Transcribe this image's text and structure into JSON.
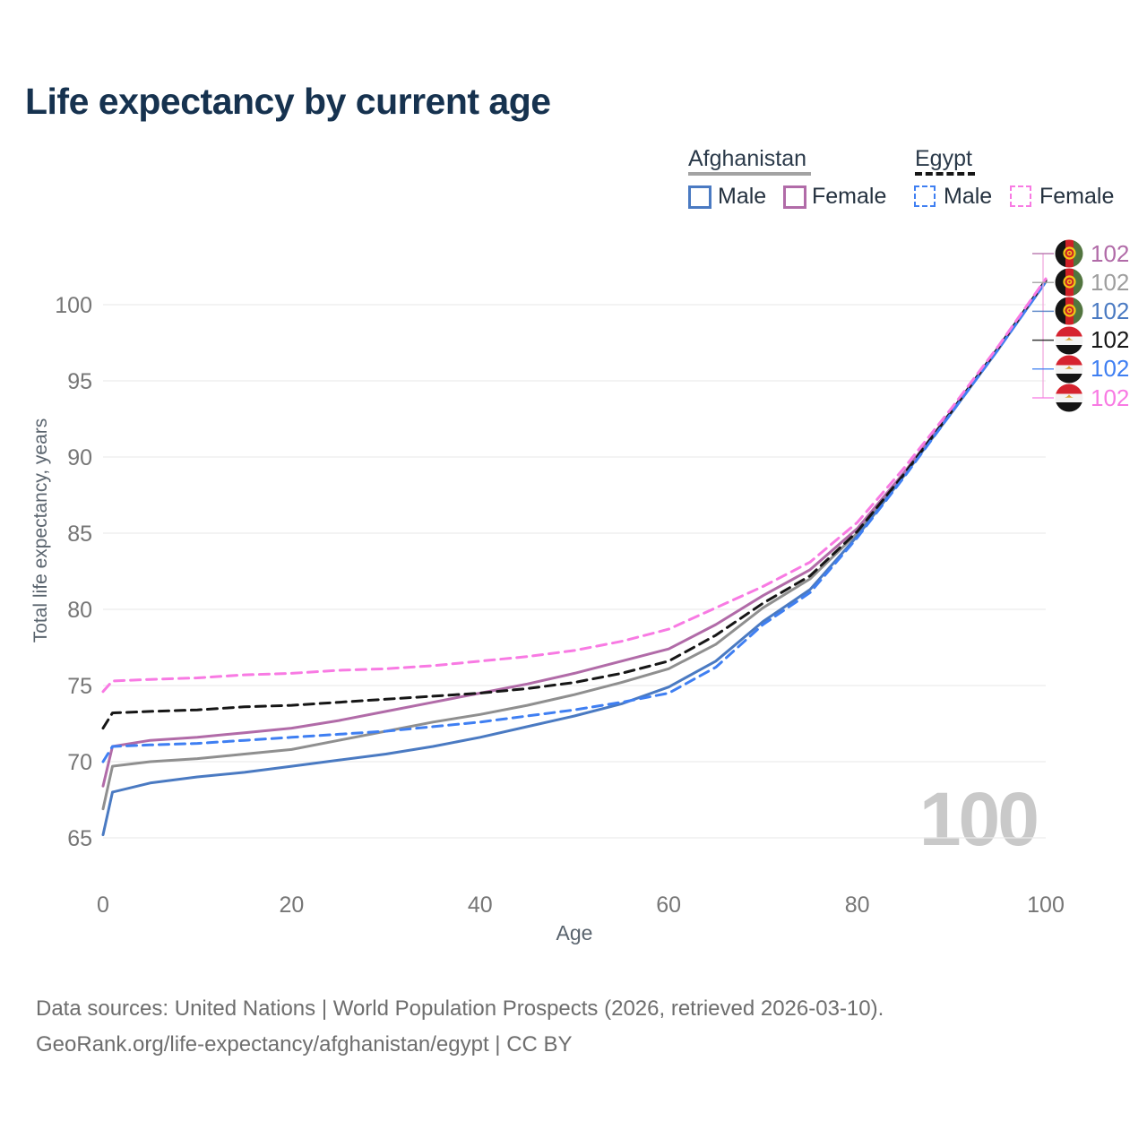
{
  "title": "Life expectancy by current age",
  "watermark": "100",
  "legend": {
    "groups": [
      {
        "country": "Afghanistan",
        "underline": "solid",
        "underline_color": "#a3a3a3",
        "items": [
          {
            "label": "Male",
            "color": "#4a7ac2",
            "dashed": false
          },
          {
            "label": "Female",
            "color": "#b16ba8",
            "dashed": false
          }
        ]
      },
      {
        "country": "Egypt",
        "underline": "dashed",
        "underline_color": "#161616",
        "items": [
          {
            "label": "Male",
            "color": "#3f7ff2",
            "dashed": true
          },
          {
            "label": "Female",
            "color": "#f87ae3",
            "dashed": true
          }
        ]
      }
    ]
  },
  "footer": {
    "line1": "Data sources: United Nations | World Population Prospects (2026, retrieved 2026-03-10).",
    "line2": "GeoRank.org/life-expectancy/afghanistan/egypt | CC BY"
  },
  "chart_data": {
    "type": "line",
    "title": "Life expectancy by current age",
    "xlabel": "Age",
    "ylabel": "Total life expectancy, years",
    "xlim": [
      0,
      100
    ],
    "ylim": [
      65,
      102
    ],
    "xticks": [
      0,
      20,
      40,
      60,
      80,
      100
    ],
    "yticks": [
      65,
      70,
      75,
      80,
      85,
      90,
      95,
      100
    ],
    "grid": "horizontal",
    "legend_position": "top-right",
    "ages": [
      0,
      1,
      5,
      10,
      15,
      20,
      25,
      30,
      35,
      40,
      45,
      50,
      55,
      60,
      65,
      70,
      75,
      80,
      85,
      90,
      95,
      100
    ],
    "series": [
      {
        "name": "Afghanistan Total",
        "country": "Afghanistan",
        "group": "total",
        "color": "#8f8f8f",
        "dashed": false,
        "values": [
          66.9,
          69.7,
          70.0,
          70.2,
          70.5,
          70.8,
          71.4,
          72.0,
          72.6,
          73.1,
          73.7,
          74.4,
          75.2,
          76.1,
          77.7,
          80.1,
          82.0,
          85.0,
          88.9,
          93.0,
          97.2,
          101.6
        ]
      },
      {
        "name": "Afghanistan Male",
        "country": "Afghanistan",
        "group": "male",
        "color": "#4a7ac2",
        "dashed": false,
        "values": [
          65.2,
          68.0,
          68.6,
          69.0,
          69.3,
          69.7,
          70.1,
          70.5,
          71.0,
          71.6,
          72.3,
          73.0,
          73.8,
          74.9,
          76.6,
          79.2,
          81.3,
          84.8,
          88.8,
          92.9,
          97.1,
          101.5
        ]
      },
      {
        "name": "Afghanistan Female",
        "country": "Afghanistan",
        "group": "female",
        "color": "#b16ba8",
        "dashed": false,
        "values": [
          68.4,
          71.0,
          71.4,
          71.6,
          71.9,
          72.2,
          72.7,
          73.3,
          73.9,
          74.5,
          75.1,
          75.8,
          76.6,
          77.4,
          79.0,
          80.9,
          82.6,
          85.3,
          89.0,
          93.0,
          97.2,
          101.6
        ]
      },
      {
        "name": "Egypt Total",
        "country": "Egypt",
        "group": "total",
        "color": "#161616",
        "dashed": true,
        "values": [
          72.2,
          73.2,
          73.3,
          73.4,
          73.6,
          73.7,
          73.9,
          74.1,
          74.3,
          74.5,
          74.8,
          75.2,
          75.8,
          76.6,
          78.3,
          80.4,
          82.2,
          85.1,
          88.9,
          93.0,
          97.2,
          101.6
        ]
      },
      {
        "name": "Egypt Male",
        "country": "Egypt",
        "group": "male",
        "color": "#3f7ff2",
        "dashed": true,
        "values": [
          70.0,
          71.0,
          71.1,
          71.2,
          71.4,
          71.6,
          71.8,
          72.0,
          72.3,
          72.6,
          73.0,
          73.4,
          73.9,
          74.5,
          76.2,
          79.0,
          81.1,
          84.7,
          88.7,
          92.9,
          97.1,
          101.5
        ]
      },
      {
        "name": "Egypt Female",
        "country": "Egypt",
        "group": "female",
        "color": "#f87ae3",
        "dashed": true,
        "values": [
          74.6,
          75.3,
          75.4,
          75.5,
          75.7,
          75.8,
          76.0,
          76.1,
          76.3,
          76.6,
          76.9,
          77.3,
          77.9,
          78.7,
          80.1,
          81.5,
          83.1,
          85.7,
          89.3,
          93.2,
          97.3,
          101.7
        ]
      }
    ],
    "end_labels": [
      {
        "flag": "afghanistan",
        "series": "Afghanistan Female",
        "value": "102",
        "color": "#b16ba8"
      },
      {
        "flag": "afghanistan",
        "series": "Afghanistan Total",
        "value": "102",
        "color": "#9e9e9e"
      },
      {
        "flag": "afghanistan",
        "series": "Afghanistan Male",
        "value": "102",
        "color": "#4a7ac2"
      },
      {
        "flag": "egypt",
        "series": "Egypt Total",
        "value": "102",
        "color": "#161616"
      },
      {
        "flag": "egypt",
        "series": "Egypt Male",
        "value": "102",
        "color": "#3f7ff2"
      },
      {
        "flag": "egypt",
        "series": "Egypt Female",
        "value": "102",
        "color": "#f87ae3"
      }
    ]
  }
}
